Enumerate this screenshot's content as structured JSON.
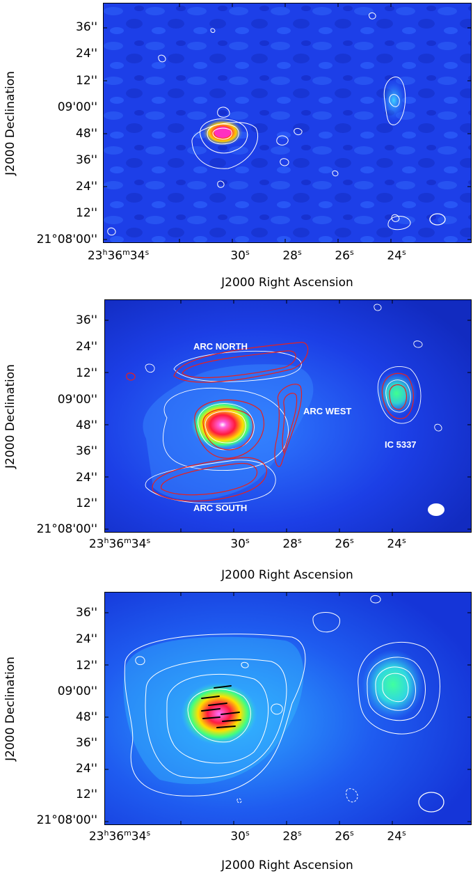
{
  "figure": {
    "panels": [
      {
        "id": "top",
        "ylabel": "J2000 Declination",
        "xlabel": "J2000 Right Ascension",
        "dec_ticks": [
          "36''",
          "24''",
          "12''",
          "09'00''",
          "48''",
          "36''",
          "24''",
          "12''",
          "21°08'00''"
        ],
        "ra_ticks": [
          {
            "hms": "23h36m34s",
            "main": "23",
            "h": "h",
            "m_val": "36",
            "m": "m",
            "s_val": "34",
            "s": "s"
          },
          {
            "hms": "30s",
            "s_val": "30",
            "s": "s"
          },
          {
            "hms": "28s",
            "s_val": "28",
            "s": "s"
          },
          {
            "hms": "26s",
            "s_val": "26",
            "s": "s"
          },
          {
            "hms": "24s",
            "s_val": "24",
            "s": "s"
          }
        ],
        "labels": []
      },
      {
        "id": "middle",
        "ylabel": "J2000 Declination",
        "xlabel": "J2000 Right Ascension",
        "dec_ticks": [
          "36''",
          "24''",
          "12''",
          "09'00''",
          "48''",
          "36''",
          "24''",
          "12''",
          "21°08'00''"
        ],
        "labels": [
          "ARC NORTH",
          "ARC WEST",
          "IC 5337",
          "ARC SOUTH"
        ]
      },
      {
        "id": "bottom",
        "ylabel": "J2000 Declination",
        "xlabel": "J2000 Right Ascension",
        "dec_ticks": [
          "36''",
          "24''",
          "12''",
          "09'00''",
          "48''",
          "36''",
          "24''",
          "12''",
          "21°08'00''"
        ],
        "labels": []
      }
    ],
    "colors": {
      "background_map": "#1a3ff0",
      "contour_white": "#ffffff",
      "contour_red": "#e8201e",
      "vector_black": "#000000"
    }
  }
}
